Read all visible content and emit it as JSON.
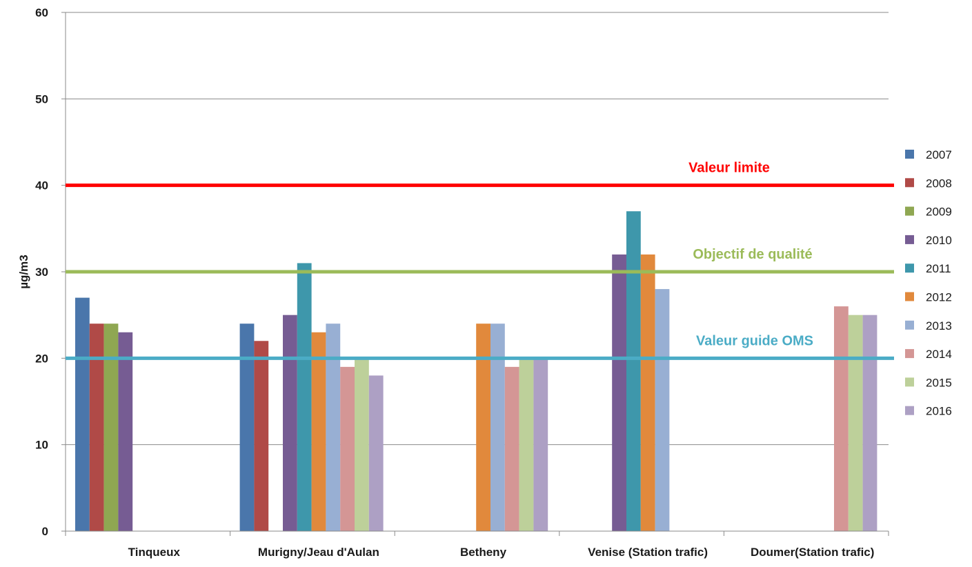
{
  "chart_data": {
    "type": "bar",
    "ylabel": "µg/m3",
    "ylim": [
      0,
      60
    ],
    "yticks": [
      0,
      10,
      20,
      30,
      40,
      50,
      60
    ],
    "grid": true,
    "legend_position": "right",
    "categories": [
      "Tinqueux",
      "Murigny/Jeau d'Aulan",
      "Betheny",
      "Venise (Station trafic)",
      "Doumer(Station trafic)"
    ],
    "series": [
      {
        "name": "2007",
        "color": "#4a76ab",
        "values": [
          27,
          24,
          null,
          null,
          null
        ]
      },
      {
        "name": "2008",
        "color": "#b04a47",
        "values": [
          24,
          22,
          null,
          null,
          null
        ]
      },
      {
        "name": "2009",
        "color": "#8fa752",
        "values": [
          24,
          null,
          null,
          null,
          null
        ]
      },
      {
        "name": "2010",
        "color": "#765c93",
        "values": [
          23,
          25,
          null,
          32,
          null
        ]
      },
      {
        "name": "2011",
        "color": "#3e97ab",
        "values": [
          null,
          31,
          null,
          37,
          null
        ]
      },
      {
        "name": "2012",
        "color": "#e1893c",
        "values": [
          null,
          23,
          24,
          32,
          null
        ]
      },
      {
        "name": "2013",
        "color": "#98afd3",
        "values": [
          null,
          24,
          24,
          28,
          null
        ]
      },
      {
        "name": "2014",
        "color": "#d49695",
        "values": [
          null,
          19,
          19,
          null,
          26
        ]
      },
      {
        "name": "2015",
        "color": "#bdd09a",
        "values": [
          null,
          20,
          20,
          null,
          25
        ]
      },
      {
        "name": "2016",
        "color": "#ada0c4",
        "values": [
          null,
          18,
          20,
          null,
          25
        ]
      }
    ],
    "reference_lines": [
      {
        "label": "Valeur limite",
        "value": 40,
        "color": "#ff0000"
      },
      {
        "label": "Objectif de qualité",
        "value": 30,
        "color": "#9bbb59"
      },
      {
        "label": "Valeur guide OMS",
        "value": 20,
        "color": "#4bacc6"
      }
    ]
  }
}
